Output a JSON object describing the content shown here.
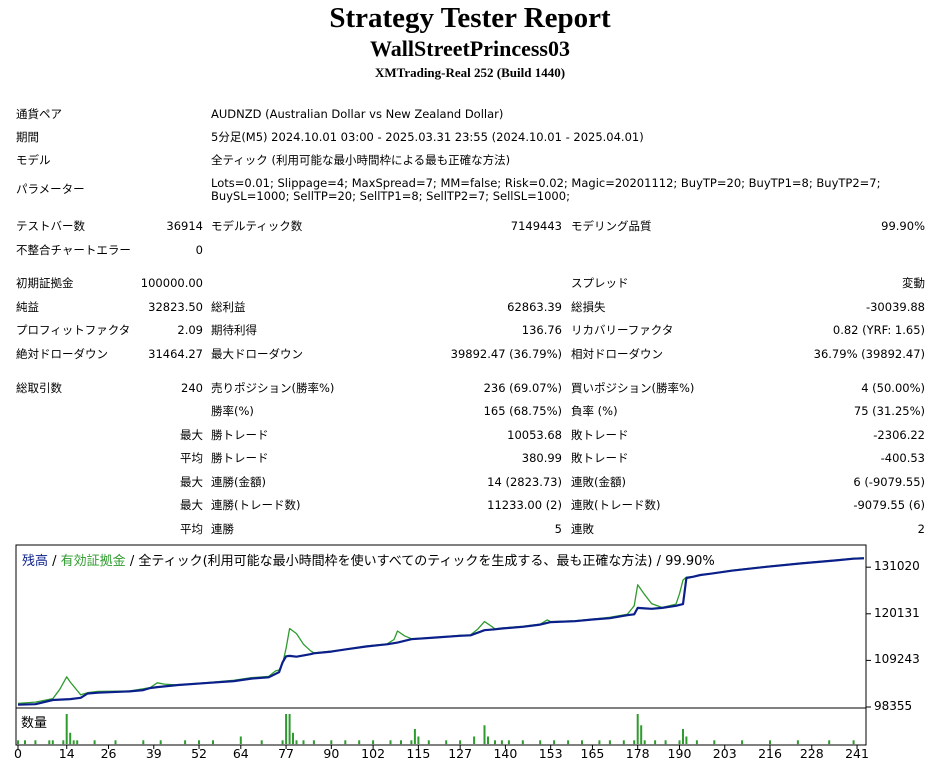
{
  "header": {
    "title": "Strategy Tester Report",
    "expert": "WallStreetPrincess03",
    "server": "XMTrading-Real 252 (Build 1440)"
  },
  "settings": {
    "symbol": {
      "label": "通貨ペア",
      "value": "AUDNZD (Australian Dollar vs New Zealand Dollar)"
    },
    "period": {
      "label": "期間",
      "value": "5分足(M5) 2024.10.01 03:00 - 2025.03.31 23:55 (2024.10.01 - 2025.04.01)"
    },
    "model": {
      "label": "モデル",
      "value": "全ティック (利用可能な最小時間枠による最も正確な方法)"
    },
    "parameters": {
      "label": "パラメーター",
      "value": "Lots=0.01; Slippage=4; MaxSpread=7; MM=false; Risk=0.02; Magic=20201112; BuyTP=20; BuyTP1=8; BuyTP2=7; BuySL=1000; SellTP=20; SellTP1=8; SellTP2=7; SellSL=1000;"
    }
  },
  "stats": {
    "bars": {
      "label": "テストバー数",
      "value": "36914"
    },
    "ticks": {
      "label": "モデルティック数",
      "value": "7149443"
    },
    "quality": {
      "label": "モデリング品質",
      "value": "99.90%"
    },
    "mismatch": {
      "label": "不整合チャートエラー",
      "value": "0"
    },
    "initial_deposit": {
      "label": "初期証拠金",
      "value": "100000.00"
    },
    "spread": {
      "label": "スプレッド",
      "value": "変動"
    },
    "net_profit": {
      "label": "純益",
      "value": "32823.50"
    },
    "gross_profit": {
      "label": "総利益",
      "value": "62863.39"
    },
    "gross_loss": {
      "label": "総損失",
      "value": "-30039.88"
    },
    "profit_factor": {
      "label": "プロフィットファクタ",
      "value": "2.09"
    },
    "expected_payoff": {
      "label": "期待利得",
      "value": "136.76"
    },
    "recovery_factor": {
      "label": "リカバリーファクタ",
      "value": "0.82 (YRF: 1.65)"
    },
    "abs_drawdown": {
      "label": "絶対ドローダウン",
      "value": "31464.27"
    },
    "max_drawdown": {
      "label": "最大ドローダウン",
      "value": "39892.47 (36.79%)"
    },
    "rel_drawdown": {
      "label": "相対ドローダウン",
      "value": "36.79% (39892.47)"
    },
    "total_trades": {
      "label": "総取引数",
      "value": "240"
    },
    "short_positions": {
      "label": "売りポジション(勝率%)",
      "value": "236 (69.07%)"
    },
    "long_positions": {
      "label": "買いポジション(勝率%)",
      "value": "4 (50.00%)"
    },
    "win_rate": {
      "label": "勝率(%)",
      "value": "165 (68.75%)"
    },
    "loss_rate": {
      "label": "負率 (%)",
      "value": "75 (31.25%)"
    },
    "largest": {
      "prefix": "最大",
      "win_label": "勝トレード",
      "win_value": "10053.68",
      "loss_label": "敗トレード",
      "loss_value": "-2306.22"
    },
    "average": {
      "prefix": "平均",
      "win_label": "勝トレード",
      "win_value": "380.99",
      "loss_label": "敗トレード",
      "loss_value": "-400.53"
    },
    "max_consec": {
      "prefix": "最大",
      "win_label": "連勝(金額)",
      "win_value": "14 (2823.73)",
      "loss_label": "連敗(金額)",
      "loss_value": "6 (-9079.55)"
    },
    "max_consec_amount": {
      "prefix": "最大",
      "win_label": "連勝(トレード数)",
      "win_value": "11233.00 (2)",
      "loss_label": "連敗(トレード数)",
      "loss_value": "-9079.55 (6)"
    },
    "avg_consec": {
      "prefix": "平均",
      "win_label": "連勝",
      "win_value": "5",
      "loss_label": "連敗",
      "loss_value": "2"
    }
  },
  "chart_data": {
    "type": "line",
    "legend": {
      "balance": "残高",
      "sep1": " / ",
      "equity": "有効証拠金",
      "sep2": " / ",
      "model": "全ティック(利用可能な最小時間枠を使いすべてのティックを生成する、最も正確な方法)",
      "sep3": " / ",
      "quality": "99.90%"
    },
    "volume_label": "数量",
    "y_ticks": [
      131020,
      120131,
      109243,
      98355
    ],
    "y_tick_labels": [
      "131020",
      "120131",
      "109243",
      "98355"
    ],
    "x_ticks": [
      "0",
      "14",
      "26",
      "39",
      "52",
      "64",
      "77",
      "90",
      "102",
      "115",
      "127",
      "140",
      "153",
      "165",
      "178",
      "190",
      "203",
      "216",
      "228",
      "241"
    ],
    "xlim": [
      0,
      243
    ],
    "ylim": [
      98355,
      135500
    ],
    "colors": {
      "balance": "#0b1f8a",
      "equity": "#2e9b2e",
      "volume": "#2e9b2e",
      "axis": "#000000"
    },
    "series": [
      {
        "name": "残高",
        "x": [
          0,
          5,
          10,
          15,
          18,
          20,
          23,
          32,
          36,
          38,
          40,
          46,
          55,
          62,
          67,
          72,
          75,
          76,
          77,
          78,
          80,
          82,
          84,
          85,
          90,
          94,
          100,
          106,
          109,
          113,
          120,
          127,
          130,
          134,
          137,
          139,
          145,
          150,
          153,
          160,
          165,
          170,
          175,
          177,
          178,
          180,
          182,
          185,
          189,
          191,
          192,
          194,
          196,
          199,
          205,
          215,
          225,
          235,
          240,
          243
        ],
        "y": [
          98900,
          99000,
          100000,
          100200,
          100500,
          101500,
          101700,
          102000,
          102300,
          102800,
          103000,
          103500,
          104000,
          104400,
          105000,
          105300,
          106500,
          108800,
          110200,
          110300,
          110100,
          110400,
          110700,
          110900,
          111300,
          111800,
          112500,
          113000,
          113400,
          114200,
          114600,
          115000,
          115100,
          116300,
          116500,
          116700,
          117100,
          117600,
          118200,
          118400,
          118800,
          119100,
          119800,
          120000,
          121500,
          121400,
          121300,
          121500,
          122000,
          122400,
          128500,
          128800,
          129200,
          129500,
          130200,
          131100,
          131900,
          132600,
          133000,
          133100
        ]
      },
      {
        "name": "有効証拠金",
        "x": [
          0,
          5,
          10,
          12,
          14,
          15,
          18,
          20,
          23,
          32,
          36,
          38,
          40,
          42,
          46,
          55,
          62,
          67,
          72,
          74,
          75,
          76,
          77,
          78,
          80,
          82,
          84,
          85,
          90,
          94,
          100,
          106,
          108,
          109,
          111,
          113,
          120,
          127,
          130,
          132,
          134,
          136,
          137,
          139,
          145,
          150,
          152,
          153,
          160,
          165,
          170,
          175,
          176,
          177,
          178,
          180,
          182,
          185,
          189,
          190,
          191,
          192,
          194,
          196,
          199,
          205,
          215,
          225,
          235,
          240,
          243
        ],
        "y": [
          99200,
          99500,
          100300,
          102500,
          105400,
          104200,
          101200,
          101700,
          102000,
          102100,
          102600,
          102900,
          104000,
          103700,
          103500,
          104100,
          104600,
          105200,
          105500,
          106800,
          107000,
          108500,
          112100,
          116700,
          115500,
          113000,
          111500,
          111000,
          111400,
          111800,
          112600,
          113100,
          114100,
          116100,
          115000,
          114300,
          114600,
          115100,
          115200,
          116500,
          118300,
          117200,
          116600,
          116800,
          117200,
          117700,
          118700,
          118300,
          118500,
          118900,
          119300,
          120000,
          121000,
          122000,
          126900,
          124600,
          122500,
          121600,
          122400,
          124800,
          128000,
          128700,
          128800,
          129200,
          129500,
          130300,
          131200,
          132000,
          132700,
          133100,
          133200
        ]
      }
    ],
    "volume": {
      "x": [
        0,
        2,
        5,
        9,
        10,
        13,
        14,
        15,
        16,
        17,
        22,
        28,
        36,
        41,
        48,
        52,
        56,
        64,
        70,
        76,
        77,
        78,
        79,
        80,
        82,
        85,
        90,
        94,
        98,
        102,
        107,
        110,
        113,
        114,
        115,
        118,
        123,
        127,
        131,
        134,
        135,
        137,
        139,
        141,
        145,
        150,
        154,
        158,
        162,
        167,
        170,
        174,
        177,
        178,
        179,
        180,
        183,
        186,
        190,
        191,
        192,
        195,
        200,
        208,
        216,
        224,
        233,
        240
      ],
      "values": [
        1,
        1,
        1,
        1,
        1,
        1,
        8,
        3,
        1,
        1,
        1,
        1,
        1,
        1,
        1,
        1,
        1,
        2,
        1,
        1,
        8,
        8,
        3,
        1,
        1,
        1,
        1,
        1,
        1,
        1,
        1,
        1,
        1,
        4,
        2,
        1,
        1,
        1,
        2,
        5,
        2,
        1,
        1,
        1,
        1,
        1,
        1,
        1,
        1,
        1,
        1,
        1,
        1,
        8,
        5,
        1,
        1,
        1,
        1,
        4,
        2,
        1,
        1,
        1,
        1,
        1,
        1,
        1
      ]
    }
  }
}
